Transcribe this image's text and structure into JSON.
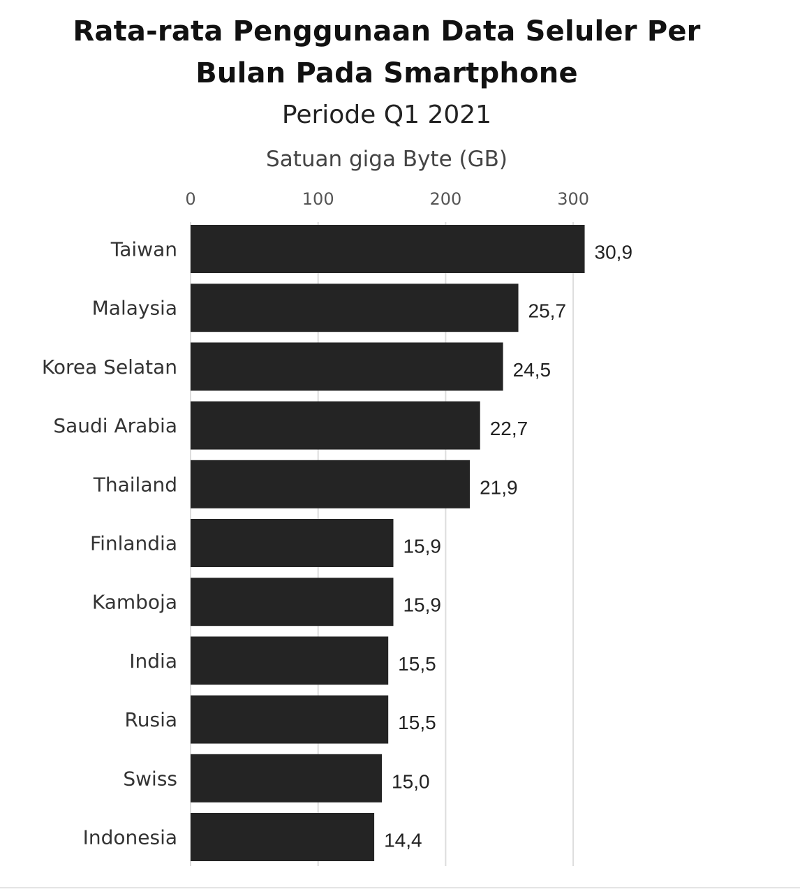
{
  "chart_data": {
    "type": "bar",
    "orientation": "horizontal",
    "title_lines": [
      "Rata-rata Penggunaan Data Seluler Per",
      "Bulan Pada Smartphone"
    ],
    "subtitle": "Periode Q1 2021",
    "axis_title": "Satuan giga Byte (GB)",
    "categories": [
      "Taiwan",
      "Malaysia",
      "Korea Selatan",
      "Saudi Arabia",
      "Thailand",
      "Finlandia",
      "Kamboja",
      "India",
      "Rusia",
      "Swiss",
      "Indonesia"
    ],
    "values": [
      30.9,
      25.7,
      24.5,
      22.7,
      21.9,
      15.9,
      15.9,
      15.5,
      15.5,
      15.0,
      14.4
    ],
    "value_labels": [
      "30,9",
      "25,7",
      "24,5",
      "22,7",
      "21,9",
      "15,9",
      "15,9",
      "15,5",
      "15,5",
      "15,0",
      "14,4"
    ],
    "xticks": [
      0,
      100,
      200,
      300
    ],
    "xtick_labels": [
      "0",
      "100",
      "200",
      "300"
    ],
    "xlim": [
      0,
      300
    ],
    "axis_position": "top",
    "grid": true,
    "bar_color": "#242424",
    "grid_color": "#dddddd"
  }
}
